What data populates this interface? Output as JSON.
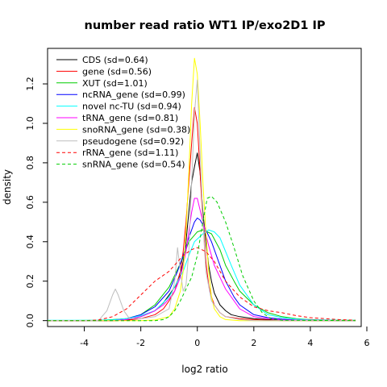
{
  "chart_data": {
    "type": "line",
    "title": "number read ratio WT1 IP/exo2D1 IP",
    "xlabel": "log2 ratio",
    "ylabel": "density",
    "xlim": [
      -5.3,
      5.8
    ],
    "ylim": [
      -0.03,
      1.38
    ],
    "xticks": [
      -4,
      -2,
      0,
      2,
      4,
      6
    ],
    "yticks": [
      0.0,
      0.2,
      0.4,
      0.6,
      0.8,
      1.0,
      1.2
    ],
    "grid": false,
    "legend_position": "top-left",
    "series": [
      {
        "name": "CDS (sd=0.64)",
        "color": "#000000",
        "dash": false,
        "x": [
          -5.3,
          -3,
          -2.5,
          -2,
          -1.5,
          -1.2,
          -1,
          -0.8,
          -0.6,
          -0.5,
          -0.4,
          -0.3,
          -0.2,
          -0.1,
          0,
          0.1,
          0.2,
          0.3,
          0.4,
          0.5,
          0.6,
          0.8,
          1,
          1.2,
          1.5,
          2,
          2.5,
          3,
          4,
          5,
          5.6
        ],
        "y": [
          0,
          0,
          0.003,
          0.02,
          0.05,
          0.09,
          0.13,
          0.17,
          0.23,
          0.3,
          0.4,
          0.55,
          0.7,
          0.78,
          0.85,
          0.75,
          0.55,
          0.4,
          0.28,
          0.2,
          0.14,
          0.08,
          0.05,
          0.03,
          0.02,
          0.01,
          0.005,
          0.002,
          0,
          0,
          0
        ]
      },
      {
        "name": "gene (sd=0.56)",
        "color": "#ff0000",
        "dash": false,
        "x": [
          -5.3,
          -3,
          -2.5,
          -2,
          -1.5,
          -1.2,
          -1,
          -0.8,
          -0.6,
          -0.5,
          -0.4,
          -0.3,
          -0.2,
          -0.1,
          0,
          0.1,
          0.2,
          0.3,
          0.4,
          0.5,
          0.6,
          0.8,
          1,
          1.5,
          2,
          3,
          5.6
        ],
        "y": [
          0,
          0,
          0.002,
          0.01,
          0.03,
          0.06,
          0.1,
          0.15,
          0.25,
          0.35,
          0.5,
          0.7,
          0.9,
          1.08,
          1.0,
          0.75,
          0.5,
          0.3,
          0.18,
          0.12,
          0.08,
          0.04,
          0.02,
          0.01,
          0.005,
          0,
          0
        ]
      },
      {
        "name": "XUT (sd=1.01)",
        "color": "#00cd00",
        "dash": false,
        "x": [
          -5.3,
          -3.5,
          -3,
          -2.5,
          -2,
          -1.5,
          -1,
          -0.5,
          -0.3,
          0,
          0.2,
          0.5,
          0.8,
          1,
          1.3,
          1.5,
          2,
          2.5,
          3,
          3.5,
          4,
          5,
          5.6
        ],
        "y": [
          0,
          0.002,
          0.005,
          0.01,
          0.03,
          0.08,
          0.17,
          0.32,
          0.4,
          0.45,
          0.46,
          0.44,
          0.36,
          0.28,
          0.2,
          0.15,
          0.08,
          0.04,
          0.02,
          0.01,
          0.005,
          0.002,
          0.002
        ]
      },
      {
        "name": "ncRNA_gene (sd=0.99)",
        "color": "#0000ff",
        "dash": false,
        "x": [
          -5.3,
          -3.5,
          -3,
          -2.5,
          -2,
          -1.5,
          -1,
          -0.7,
          -0.5,
          -0.3,
          -0.1,
          0,
          0.1,
          0.3,
          0.5,
          0.7,
          1,
          1.3,
          1.5,
          2,
          2.5,
          3,
          3.5,
          4,
          5,
          5.6
        ],
        "y": [
          0,
          0,
          0.003,
          0.01,
          0.03,
          0.07,
          0.15,
          0.25,
          0.33,
          0.42,
          0.5,
          0.52,
          0.51,
          0.46,
          0.4,
          0.32,
          0.2,
          0.12,
          0.08,
          0.03,
          0.015,
          0.007,
          0.003,
          0.001,
          0,
          0
        ]
      },
      {
        "name": "novel nc-TU (sd=0.94)",
        "color": "#00ffff",
        "dash": false,
        "x": [
          -5.3,
          -3.5,
          -3,
          -2.5,
          -2,
          -1.5,
          -1,
          -0.5,
          -0.3,
          -0.1,
          0.2,
          0.4,
          0.6,
          0.8,
          1,
          1.2,
          1.5,
          2,
          2.5,
          3,
          3.5,
          4,
          5,
          5.6
        ],
        "y": [
          0.002,
          0.002,
          0.004,
          0.01,
          0.025,
          0.05,
          0.12,
          0.25,
          0.33,
          0.4,
          0.44,
          0.46,
          0.45,
          0.42,
          0.35,
          0.28,
          0.18,
          0.08,
          0.03,
          0.015,
          0.008,
          0.004,
          0.002,
          0.002
        ]
      },
      {
        "name": "tRNA_gene (sd=0.81)",
        "color": "#ff00ff",
        "dash": false,
        "x": [
          -5.3,
          -3,
          -2.5,
          -2,
          -1.5,
          -1.2,
          -1,
          -0.8,
          -0.6,
          -0.4,
          -0.2,
          -0.1,
          0,
          0.2,
          0.4,
          0.6,
          0.8,
          1,
          1.5,
          2,
          2.5,
          3,
          5.6
        ],
        "y": [
          0,
          0,
          0.005,
          0.02,
          0.05,
          0.08,
          0.11,
          0.15,
          0.22,
          0.35,
          0.55,
          0.62,
          0.62,
          0.5,
          0.38,
          0.28,
          0.22,
          0.16,
          0.06,
          0.02,
          0.01,
          0.003,
          0
        ]
      },
      {
        "name": "snoRNA_gene (sd=0.38)",
        "color": "#ffff00",
        "dash": false,
        "x": [
          -5.3,
          -2,
          -1.5,
          -1,
          -0.8,
          -0.6,
          -0.5,
          -0.4,
          -0.3,
          -0.2,
          -0.1,
          0,
          0.1,
          0.2,
          0.3,
          0.4,
          0.5,
          0.6,
          0.8,
          1,
          1.5,
          2,
          5.6
        ],
        "y": [
          0,
          0,
          0.003,
          0.02,
          0.06,
          0.15,
          0.25,
          0.45,
          0.75,
          1.1,
          1.33,
          1.25,
          1.0,
          0.7,
          0.45,
          0.25,
          0.12,
          0.06,
          0.02,
          0.005,
          0,
          0,
          0
        ]
      },
      {
        "name": "pseudogene (sd=0.92)",
        "color": "#bebebe",
        "dash": false,
        "x": [
          -5.3,
          -3.5,
          -3.2,
          -3.0,
          -2.9,
          -2.8,
          -2.6,
          -2.4,
          -2.0,
          -1.5,
          -1.0,
          -0.8,
          -0.7,
          -0.6,
          -0.5,
          -0.4,
          -0.3,
          -0.2,
          -0.1,
          0,
          0.1,
          0.2,
          0.3,
          0.5,
          0.8,
          1,
          1.5,
          2,
          5.6
        ],
        "y": [
          0,
          0,
          0.05,
          0.13,
          0.16,
          0.13,
          0.05,
          0.01,
          0.01,
          0.02,
          0.06,
          0.2,
          0.37,
          0.25,
          0.15,
          0.18,
          0.35,
          0.7,
          1.05,
          1.22,
          0.85,
          0.5,
          0.25,
          0.1,
          0.04,
          0.02,
          0.005,
          0,
          0
        ]
      },
      {
        "name": "rRNA_gene (sd=1.11)",
        "color": "#ff0000",
        "dash": true,
        "x": [
          -5.3,
          -4,
          -3.5,
          -3,
          -2.5,
          -2,
          -1.5,
          -1,
          -0.5,
          -0.2,
          0,
          0.3,
          0.6,
          1,
          1.5,
          2,
          2.5,
          3,
          3.5,
          4,
          4.5,
          5,
          5.6
        ],
        "y": [
          0,
          0,
          0.003,
          0.02,
          0.06,
          0.13,
          0.2,
          0.25,
          0.33,
          0.36,
          0.37,
          0.35,
          0.3,
          0.2,
          0.12,
          0.07,
          0.05,
          0.04,
          0.025,
          0.015,
          0.01,
          0.005,
          0.002
        ]
      },
      {
        "name": "snRNA_gene (sd=0.54)",
        "color": "#00cd00",
        "dash": true,
        "x": [
          -5.3,
          -1.5,
          -1.2,
          -1,
          -0.8,
          -0.6,
          -0.4,
          -0.2,
          0,
          0.2,
          0.35,
          0.5,
          0.7,
          1,
          1.3,
          1.6,
          2,
          2.3,
          2.6,
          3,
          5.6
        ],
        "y": [
          0,
          0,
          0.005,
          0.02,
          0.05,
          0.1,
          0.16,
          0.22,
          0.33,
          0.5,
          0.62,
          0.63,
          0.6,
          0.5,
          0.37,
          0.23,
          0.1,
          0.04,
          0.01,
          0.002,
          0
        ]
      }
    ]
  }
}
